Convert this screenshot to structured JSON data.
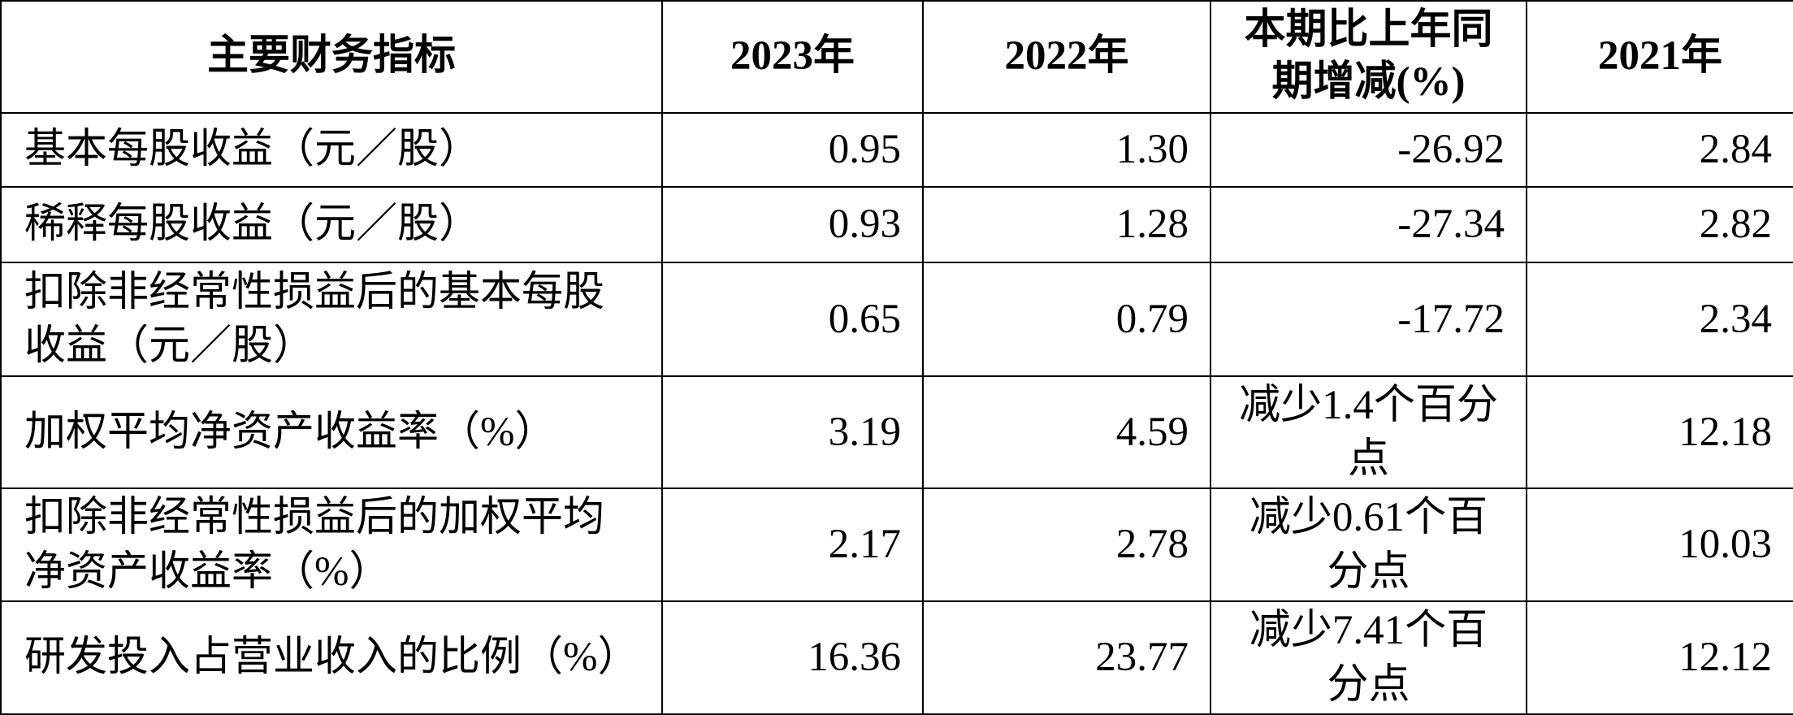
{
  "table": {
    "header": [
      "主要财务指标",
      "2023年",
      "2022年",
      "本期比上年同期增减(%)",
      "2021年"
    ],
    "rows": [
      [
        "基本每股收益（元／股）",
        "0.95",
        "1.30",
        "-26.92",
        "2.84"
      ],
      [
        "稀释每股收益（元／股）",
        "0.93",
        "1.28",
        "-27.34",
        "2.82"
      ],
      [
        "扣除非经常性损益后的基本每股收益（元／股）",
        "0.65",
        "0.79",
        "-17.72",
        "2.34"
      ],
      [
        "加权平均净资产收益率（%）",
        "3.19",
        "4.59",
        "减少1.4个百分点",
        "12.18"
      ],
      [
        "扣除非经常性损益后的加权平均净资产收益率（%）",
        "2.17",
        "2.78",
        "减少0.61个百分点",
        "10.03"
      ],
      [
        "研发投入占营业收入的比例（%）",
        "16.36",
        "23.77",
        "减少7.41个百分点",
        "12.12"
      ]
    ]
  }
}
